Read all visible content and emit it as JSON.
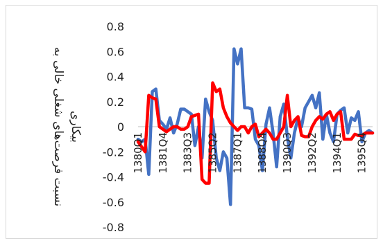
{
  "chart_data": {
    "type": "line",
    "title": "",
    "xlabel": "",
    "ylabel_lines": [
      "نسبت فرصت‌های شغلی خالی به",
      "بیکاری"
    ],
    "ylim": [
      -0.8,
      0.8
    ],
    "yticks": [
      "0.8",
      "0.6",
      "0.4",
      "0.2",
      "0",
      "-0.2",
      "-0.4",
      "-0.6",
      "-0.8"
    ],
    "ytick_values": [
      0.8,
      0.6,
      0.4,
      0.2,
      0,
      -0.2,
      -0.4,
      -0.6,
      -0.8
    ],
    "x_tick_labels": [
      {
        "index": 0,
        "label": "1380Q1"
      },
      {
        "index": 7,
        "label": "1381Q4"
      },
      {
        "index": 14,
        "label": "1383Q3"
      },
      {
        "index": 21,
        "label": "1385Q2"
      },
      {
        "index": 28,
        "label": "1387Q1"
      },
      {
        "index": 35,
        "label": "1388Q4"
      },
      {
        "index": 42,
        "label": "1390Q3"
      },
      {
        "index": 49,
        "label": "1392Q2"
      },
      {
        "index": 56,
        "label": "1394Q1"
      },
      {
        "index": 63,
        "label": "1395Q4"
      }
    ],
    "grid": false,
    "legend": "none",
    "series": [
      {
        "color": "#4472C4",
        "values": [
          -0.1,
          -0.12,
          -0.1,
          -0.38,
          0.28,
          0.3,
          0.05,
          0.02,
          -0.02,
          0.07,
          -0.05,
          0.02,
          0.14,
          0.14,
          0.12,
          0.1,
          -0.15,
          0.0,
          -0.25,
          0.22,
          0.12,
          0.05,
          -0.25,
          -0.35,
          -0.2,
          -0.25,
          -0.62,
          0.62,
          0.5,
          0.62,
          0.15,
          0.15,
          0.14,
          -0.1,
          -0.15,
          -0.35,
          0.02,
          0.15,
          -0.05,
          -0.32,
          0.08,
          0.18,
          -0.08,
          -0.25,
          -0.05,
          0.07,
          0.0,
          0.15,
          0.2,
          0.25,
          0.15,
          0.27,
          -0.1,
          0.1,
          -0.05,
          -0.12,
          0.1,
          0.13,
          0.15,
          -0.05,
          0.07,
          0.05,
          0.12,
          -0.12,
          -0.05,
          -0.03,
          -0.05
        ]
      },
      {
        "color": "#FF0000",
        "values": [
          -0.12,
          -0.16,
          -0.2,
          0.25,
          0.23,
          0.22,
          0.0,
          -0.02,
          -0.04,
          -0.02,
          0.0,
          0.0,
          -0.02,
          -0.02,
          0.0,
          0.08,
          0.09,
          0.1,
          -0.42,
          -0.45,
          -0.45,
          0.35,
          0.28,
          0.3,
          0.15,
          0.08,
          0.03,
          0.0,
          -0.03,
          0.0,
          0.0,
          -0.05,
          0.0,
          0.02,
          -0.08,
          -0.05,
          -0.02,
          -0.05,
          -0.1,
          -0.1,
          -0.05,
          0.0,
          0.25,
          0.0,
          0.05,
          0.08,
          -0.07,
          -0.08,
          -0.08,
          0.0,
          0.05,
          0.08,
          0.06,
          0.1,
          0.12,
          0.05,
          0.1,
          0.12,
          -0.1,
          -0.1,
          -0.1,
          -0.06,
          -0.07,
          -0.07,
          -0.05,
          -0.05,
          -0.05
        ]
      }
    ]
  }
}
